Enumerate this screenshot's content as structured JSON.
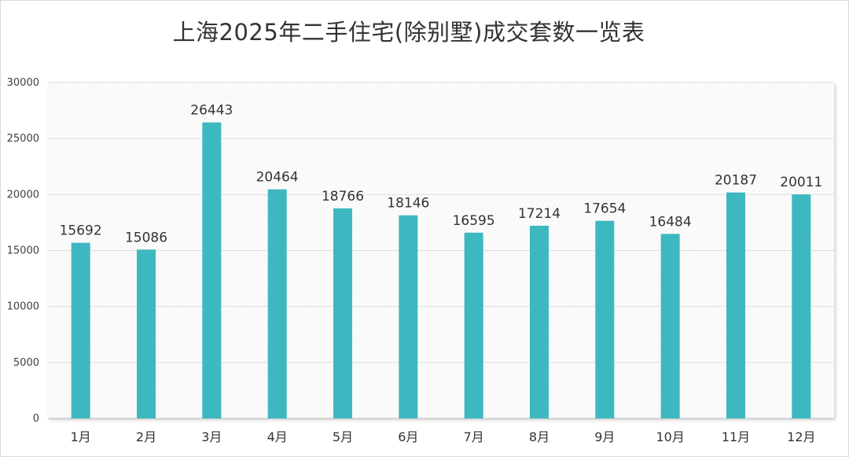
{
  "chart_data": {
    "type": "bar",
    "title": "上海2025年二手住宅(除别墅)成交套数一览表",
    "xlabel": "",
    "ylabel": "",
    "categories": [
      "1月",
      "2月",
      "3月",
      "4月",
      "5月",
      "6月",
      "7月",
      "8月",
      "9月",
      "10月",
      "11月",
      "12月"
    ],
    "values": [
      15692,
      15086,
      26443,
      20464,
      18766,
      18146,
      16595,
      17214,
      17654,
      16484,
      20187,
      20011
    ],
    "ylim": [
      0,
      30000
    ],
    "yticks": [
      0,
      5000,
      10000,
      15000,
      20000,
      25000,
      30000
    ],
    "grid": true,
    "legend": "none",
    "bar_color": "#3DB8C1"
  }
}
